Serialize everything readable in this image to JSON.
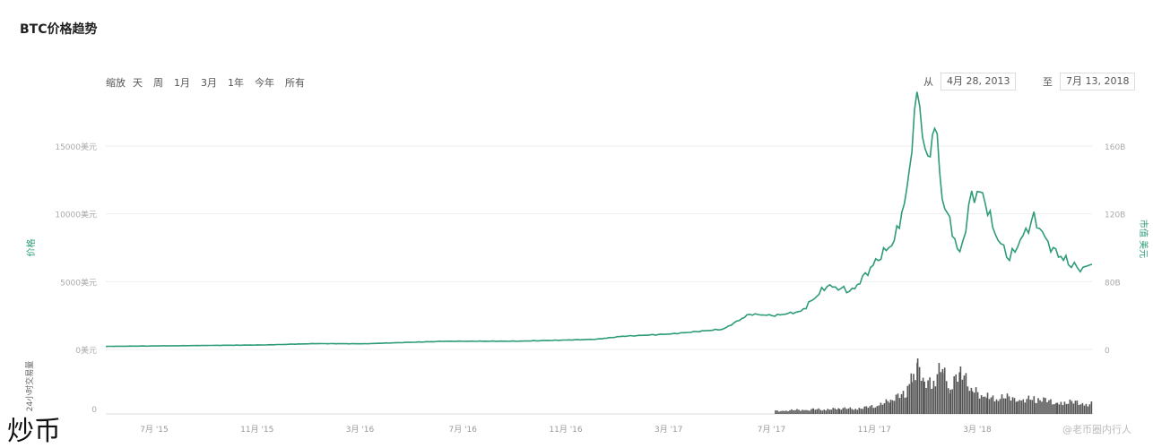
{
  "title": "BTC价格趋势",
  "zoom": {
    "label": "缩放",
    "buttons": [
      "天",
      "周",
      "1月",
      "3月",
      "1年",
      "今年",
      "所有"
    ]
  },
  "range": {
    "from_label": "从",
    "from_value": "4月 28, 2013",
    "to_label": "至",
    "to_value": "7月 13, 2018"
  },
  "watermark": "炒币",
  "credit": "@老币圈内行人",
  "colors": {
    "line": "#2e9b7a",
    "volume": "#555555",
    "grid": "#eeeeee"
  },
  "chart_data": {
    "type": "line",
    "x_ticks": [
      "7月 '15",
      "11月 '15",
      "3月 '16",
      "7月 '16",
      "11月 '16",
      "3月 '17",
      "7月 '17",
      "11月 '17",
      "3月 '18"
    ],
    "y_left": {
      "label": "价格",
      "ticks": [
        "0美元",
        "5000美元",
        "10000美元",
        "15000美元"
      ],
      "ylim": [
        0,
        15000
      ]
    },
    "y_right": {
      "label": "市值 美元",
      "ticks": [
        "0",
        "80B",
        "120B",
        "160B"
      ]
    },
    "volume_axis": {
      "label": "24小时交易量",
      "ticks": [
        "0"
      ]
    },
    "grid": true,
    "series": [
      {
        "name": "价格",
        "values": [
          [
            "2015-04-28",
            225
          ],
          [
            "2015-08-01",
            280
          ],
          [
            "2015-11-01",
            330
          ],
          [
            "2016-01-01",
            430
          ],
          [
            "2016-03-01",
            420
          ],
          [
            "2016-06-01",
            600
          ],
          [
            "2016-09-01",
            610
          ],
          [
            "2016-12-01",
            750
          ],
          [
            "2017-01-01",
            970
          ],
          [
            "2017-03-01",
            1150
          ],
          [
            "2017-05-01",
            1500
          ],
          [
            "2017-06-01",
            2600
          ],
          [
            "2017-07-01",
            2500
          ],
          [
            "2017-08-01",
            2800
          ],
          [
            "2017-09-01",
            4700
          ],
          [
            "2017-10-01",
            4300
          ],
          [
            "2017-11-01",
            6700
          ],
          [
            "2017-11-20",
            8000
          ],
          [
            "2017-12-05",
            11500
          ],
          [
            "2017-12-17",
            19000
          ],
          [
            "2017-12-30",
            13500
          ],
          [
            "2018-01-07",
            17000
          ],
          [
            "2018-01-16",
            11200
          ],
          [
            "2018-02-06",
            6900
          ],
          [
            "2018-02-20",
            11400
          ],
          [
            "2018-03-05",
            11500
          ],
          [
            "2018-03-20",
            8500
          ],
          [
            "2018-04-06",
            6700
          ],
          [
            "2018-05-05",
            9700
          ],
          [
            "2018-05-25",
            7500
          ],
          [
            "2018-06-15",
            6400
          ],
          [
            "2018-06-29",
            5900
          ],
          [
            "2018-07-13",
            6300
          ]
        ]
      },
      {
        "name": "24小时交易量",
        "values": [
          [
            "2017-07-01",
            0.06
          ],
          [
            "2017-08-15",
            0.09
          ],
          [
            "2017-09-15",
            0.1
          ],
          [
            "2017-10-15",
            0.12
          ],
          [
            "2017-11-15",
            0.25
          ],
          [
            "2017-12-05",
            0.45
          ],
          [
            "2017-12-10",
            0.85
          ],
          [
            "2017-12-17",
            0.95
          ],
          [
            "2017-12-25",
            0.55
          ],
          [
            "2018-01-05",
            0.7
          ],
          [
            "2018-01-16",
            0.9
          ],
          [
            "2018-01-25",
            0.5
          ],
          [
            "2018-02-06",
            0.8
          ],
          [
            "2018-02-20",
            0.45
          ],
          [
            "2018-03-10",
            0.35
          ],
          [
            "2018-04-15",
            0.3
          ],
          [
            "2018-05-05",
            0.28
          ],
          [
            "2018-06-01",
            0.25
          ],
          [
            "2018-07-13",
            0.2
          ]
        ]
      }
    ]
  }
}
